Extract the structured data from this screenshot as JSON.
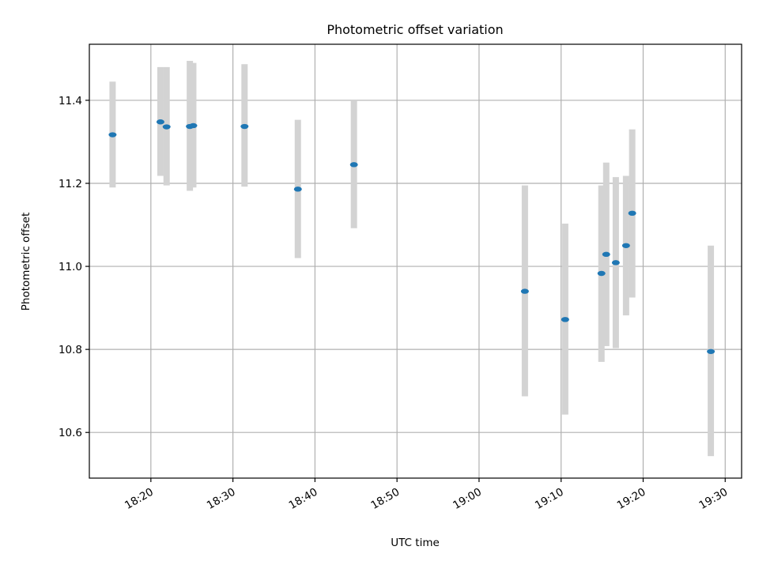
{
  "chart_data": {
    "type": "scatter",
    "title": "Photometric offset variation",
    "xlabel": "UTC time",
    "ylabel": "Photometric offset",
    "x_axis": "time",
    "xlim": [
      "18:12:30",
      "19:32:00"
    ],
    "ylim": [
      10.49,
      11.535
    ],
    "xticks": [
      "18:20",
      "18:30",
      "18:40",
      "18:50",
      "19:00",
      "19:10",
      "19:20",
      "19:30"
    ],
    "yticks": [
      10.6,
      10.8,
      11.0,
      11.2,
      11.4
    ],
    "ytick_labels": [
      "10.6",
      "10.8",
      "11.0",
      "11.2",
      "11.4"
    ],
    "grid": true,
    "point_color": "#1f77b4",
    "errorbar_color": "#d3d3d3",
    "points": [
      {
        "x": "18:15:20",
        "y": 11.317,
        "ylow": 11.19,
        "yhigh": 11.445
      },
      {
        "x": "18:21:10",
        "y": 11.348,
        "ylow": 11.218,
        "yhigh": 11.48
      },
      {
        "x": "18:21:55",
        "y": 11.336,
        "ylow": 11.195,
        "yhigh": 11.48
      },
      {
        "x": "18:24:45",
        "y": 11.337,
        "ylow": 11.182,
        "yhigh": 11.495
      },
      {
        "x": "18:25:10",
        "y": 11.339,
        "ylow": 11.19,
        "yhigh": 11.49
      },
      {
        "x": "18:31:25",
        "y": 11.337,
        "ylow": 11.192,
        "yhigh": 11.487
      },
      {
        "x": "18:37:55",
        "y": 11.186,
        "ylow": 11.02,
        "yhigh": 11.353
      },
      {
        "x": "18:44:45",
        "y": 11.245,
        "ylow": 11.092,
        "yhigh": 11.4
      },
      {
        "x": "19:05:35",
        "y": 10.94,
        "ylow": 10.687,
        "yhigh": 11.195
      },
      {
        "x": "19:10:30",
        "y": 10.872,
        "ylow": 10.643,
        "yhigh": 11.103
      },
      {
        "x": "19:14:55",
        "y": 10.983,
        "ylow": 10.77,
        "yhigh": 11.195
      },
      {
        "x": "19:15:30",
        "y": 11.029,
        "ylow": 10.808,
        "yhigh": 11.25
      },
      {
        "x": "19:16:40",
        "y": 11.009,
        "ylow": 10.803,
        "yhigh": 11.215
      },
      {
        "x": "19:17:55",
        "y": 11.05,
        "ylow": 10.882,
        "yhigh": 11.218
      },
      {
        "x": "19:18:40",
        "y": 11.128,
        "ylow": 10.925,
        "yhigh": 11.33
      },
      {
        "x": "19:28:15",
        "y": 10.795,
        "ylow": 10.543,
        "yhigh": 11.05
      }
    ]
  }
}
